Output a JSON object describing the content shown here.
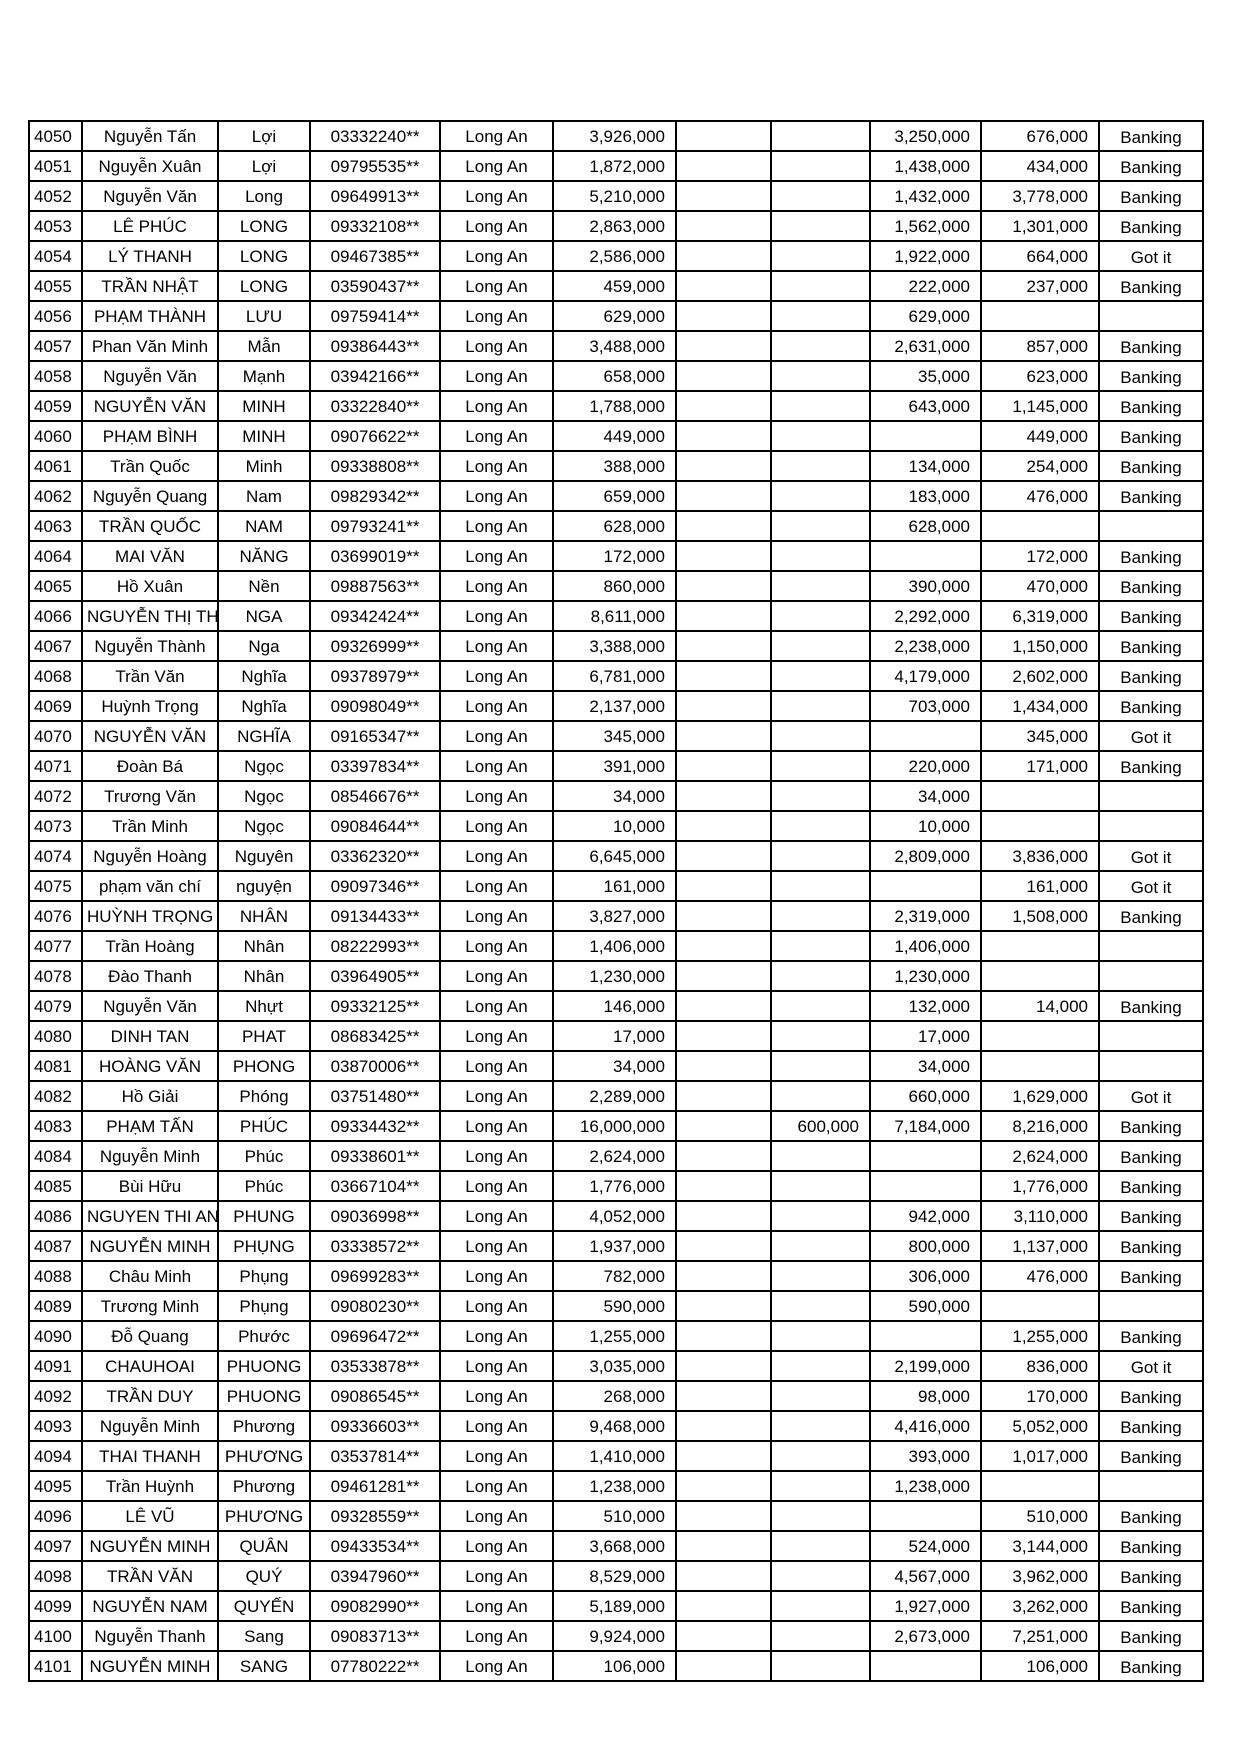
{
  "table": {
    "rows": [
      [
        "4050",
        "Nguyễn Tấn",
        "Lợi",
        "03332240**",
        "Long An",
        "3,926,000",
        "",
        "",
        "3,250,000",
        "676,000",
        "Banking"
      ],
      [
        "4051",
        "Nguyễn Xuân",
        "Lợi",
        "09795535**",
        "Long An",
        "1,872,000",
        "",
        "",
        "1,438,000",
        "434,000",
        "Banking"
      ],
      [
        "4052",
        "Nguyễn Văn",
        "Long",
        "09649913**",
        "Long An",
        "5,210,000",
        "",
        "",
        "1,432,000",
        "3,778,000",
        "Banking"
      ],
      [
        "4053",
        "LÊ PHÚC",
        "LONG",
        "09332108**",
        "Long An",
        "2,863,000",
        "",
        "",
        "1,562,000",
        "1,301,000",
        "Banking"
      ],
      [
        "4054",
        "LÝ THANH",
        "LONG",
        "09467385**",
        "Long An",
        "2,586,000",
        "",
        "",
        "1,922,000",
        "664,000",
        "Got it"
      ],
      [
        "4055",
        "TRẦN NHẬT",
        "LONG",
        "03590437**",
        "Long An",
        "459,000",
        "",
        "",
        "222,000",
        "237,000",
        "Banking"
      ],
      [
        "4056",
        "PHẠM THÀNH",
        "LƯU",
        "09759414**",
        "Long An",
        "629,000",
        "",
        "",
        "629,000",
        "",
        ""
      ],
      [
        "4057",
        "Phan Văn Minh",
        "Mẫn",
        "09386443**",
        "Long An",
        "3,488,000",
        "",
        "",
        "2,631,000",
        "857,000",
        "Banking"
      ],
      [
        "4058",
        "Nguyễn Văn",
        "Mạnh",
        "03942166**",
        "Long An",
        "658,000",
        "",
        "",
        "35,000",
        "623,000",
        "Banking"
      ],
      [
        "4059",
        "NGUYỄN VĂN",
        "MINH",
        "03322840**",
        "Long An",
        "1,788,000",
        "",
        "",
        "643,000",
        "1,145,000",
        "Banking"
      ],
      [
        "4060",
        "PHẠM BÌNH",
        "MINH",
        "09076622**",
        "Long An",
        "449,000",
        "",
        "",
        "",
        "449,000",
        "Banking"
      ],
      [
        "4061",
        "Trần Quốc",
        "Minh",
        "09338808**",
        "Long An",
        "388,000",
        "",
        "",
        "134,000",
        "254,000",
        "Banking"
      ],
      [
        "4062",
        "Nguyễn Quang",
        "Nam",
        "09829342**",
        "Long An",
        "659,000",
        "",
        "",
        "183,000",
        "476,000",
        "Banking"
      ],
      [
        "4063",
        "TRẦN QUỐC",
        "NAM",
        "09793241**",
        "Long An",
        "628,000",
        "",
        "",
        "628,000",
        "",
        ""
      ],
      [
        "4064",
        "MAI VĂN",
        "NĂNG",
        "03699019**",
        "Long An",
        "172,000",
        "",
        "",
        "",
        "172,000",
        "Banking"
      ],
      [
        "4065",
        "Hồ Xuân",
        "Nền",
        "09887563**",
        "Long An",
        "860,000",
        "",
        "",
        "390,000",
        "470,000",
        "Banking"
      ],
      [
        "4066",
        "NGUYỄN THỊ THANH",
        "NGA",
        "09342424**",
        "Long An",
        "8,611,000",
        "",
        "",
        "2,292,000",
        "6,319,000",
        "Banking"
      ],
      [
        "4067",
        "Nguyễn Thành",
        "Nga",
        "09326999**",
        "Long An",
        "3,388,000",
        "",
        "",
        "2,238,000",
        "1,150,000",
        "Banking"
      ],
      [
        "4068",
        "Trần Văn",
        "Nghĩa",
        "09378979**",
        "Long An",
        "6,781,000",
        "",
        "",
        "4,179,000",
        "2,602,000",
        "Banking"
      ],
      [
        "4069",
        "Huỳnh Trọng",
        "Nghĩa",
        "09098049**",
        "Long An",
        "2,137,000",
        "",
        "",
        "703,000",
        "1,434,000",
        "Banking"
      ],
      [
        "4070",
        "NGUYỄN VĂN",
        "NGHĨA",
        "09165347**",
        "Long An",
        "345,000",
        "",
        "",
        "",
        "345,000",
        "Got it"
      ],
      [
        "4071",
        "Đoàn Bá",
        "Ngọc",
        "03397834**",
        "Long An",
        "391,000",
        "",
        "",
        "220,000",
        "171,000",
        "Banking"
      ],
      [
        "4072",
        "Trương Văn",
        "Ngọc",
        "08546676**",
        "Long An",
        "34,000",
        "",
        "",
        "34,000",
        "",
        ""
      ],
      [
        "4073",
        "Trần Minh",
        "Ngọc",
        "09084644**",
        "Long An",
        "10,000",
        "",
        "",
        "10,000",
        "",
        ""
      ],
      [
        "4074",
        "Nguyễn Hoàng",
        "Nguyên",
        "03362320**",
        "Long An",
        "6,645,000",
        "",
        "",
        "2,809,000",
        "3,836,000",
        "Got it"
      ],
      [
        "4075",
        "phạm văn chí",
        "nguyện",
        "09097346**",
        "Long An",
        "161,000",
        "",
        "",
        "",
        "161,000",
        "Got it"
      ],
      [
        "4076",
        "HUỲNH TRỌNG",
        "NHÂN",
        "09134433**",
        "Long An",
        "3,827,000",
        "",
        "",
        "2,319,000",
        "1,508,000",
        "Banking"
      ],
      [
        "4077",
        "Trần Hoàng",
        "Nhân",
        "08222993**",
        "Long An",
        "1,406,000",
        "",
        "",
        "1,406,000",
        "",
        ""
      ],
      [
        "4078",
        "Đào Thanh",
        "Nhân",
        "03964905**",
        "Long An",
        "1,230,000",
        "",
        "",
        "1,230,000",
        "",
        ""
      ],
      [
        "4079",
        "Nguyễn Văn",
        "Nhựt",
        "09332125**",
        "Long An",
        "146,000",
        "",
        "",
        "132,000",
        "14,000",
        "Banking"
      ],
      [
        "4080",
        "DINH TAN",
        "PHAT",
        "08683425**",
        "Long An",
        "17,000",
        "",
        "",
        "17,000",
        "",
        ""
      ],
      [
        "4081",
        "HOÀNG VĂN",
        "PHONG",
        "03870006**",
        "Long An",
        "34,000",
        "",
        "",
        "34,000",
        "",
        ""
      ],
      [
        "4082",
        "Hồ Giải",
        "Phóng",
        "03751480**",
        "Long An",
        "2,289,000",
        "",
        "",
        "660,000",
        "1,629,000",
        "Got it"
      ],
      [
        "4083",
        "PHẠM TẤN",
        "PHÚC",
        "09334432**",
        "Long An",
        "16,000,000",
        "",
        "600,000",
        "7,184,000",
        "8,216,000",
        "Banking"
      ],
      [
        "4084",
        "Nguyễn Minh",
        "Phúc",
        "09338601**",
        "Long An",
        "2,624,000",
        "",
        "",
        "",
        "2,624,000",
        "Banking"
      ],
      [
        "4085",
        "Bùi Hữu",
        "Phúc",
        "03667104**",
        "Long An",
        "1,776,000",
        "",
        "",
        "",
        "1,776,000",
        "Banking"
      ],
      [
        "4086",
        "NGUYEN THI ANH",
        "PHUNG",
        "09036998**",
        "Long An",
        "4,052,000",
        "",
        "",
        "942,000",
        "3,110,000",
        "Banking"
      ],
      [
        "4087",
        "NGUYỄN MINH",
        "PHỤNG",
        "03338572**",
        "Long An",
        "1,937,000",
        "",
        "",
        "800,000",
        "1,137,000",
        "Banking"
      ],
      [
        "4088",
        "Châu Minh",
        "Phụng",
        "09699283**",
        "Long An",
        "782,000",
        "",
        "",
        "306,000",
        "476,000",
        "Banking"
      ],
      [
        "4089",
        "Trương Minh",
        "Phụng",
        "09080230**",
        "Long An",
        "590,000",
        "",
        "",
        "590,000",
        "",
        ""
      ],
      [
        "4090",
        "Đỗ Quang",
        "Phước",
        "09696472**",
        "Long An",
        "1,255,000",
        "",
        "",
        "",
        "1,255,000",
        "Banking"
      ],
      [
        "4091",
        "CHAUHOAI",
        "PHUONG",
        "03533878**",
        "Long An",
        "3,035,000",
        "",
        "",
        "2,199,000",
        "836,000",
        "Got it"
      ],
      [
        "4092",
        "TRẦN DUY",
        "PHUONG",
        "09086545**",
        "Long An",
        "268,000",
        "",
        "",
        "98,000",
        "170,000",
        "Banking"
      ],
      [
        "4093",
        "Nguyễn Minh",
        "Phương",
        "09336603**",
        "Long An",
        "9,468,000",
        "",
        "",
        "4,416,000",
        "5,052,000",
        "Banking"
      ],
      [
        "4094",
        "THAI THANH",
        "PHƯƠNG",
        "03537814**",
        "Long An",
        "1,410,000",
        "",
        "",
        "393,000",
        "1,017,000",
        "Banking"
      ],
      [
        "4095",
        "Trần Huỳnh",
        "Phương",
        "09461281**",
        "Long An",
        "1,238,000",
        "",
        "",
        "1,238,000",
        "",
        ""
      ],
      [
        "4096",
        "LÊ VŨ",
        "PHƯƠNG",
        "09328559**",
        "Long An",
        "510,000",
        "",
        "",
        "",
        "510,000",
        "Banking"
      ],
      [
        "4097",
        "NGUYỄN MINH",
        "QUÂN",
        "09433534**",
        "Long An",
        "3,668,000",
        "",
        "",
        "524,000",
        "3,144,000",
        "Banking"
      ],
      [
        "4098",
        "TRẦN VĂN",
        "QUÝ",
        "03947960**",
        "Long An",
        "8,529,000",
        "",
        "",
        "4,567,000",
        "3,962,000",
        "Banking"
      ],
      [
        "4099",
        "NGUYỄN NAM",
        "QUYẾN",
        "09082990**",
        "Long An",
        "5,189,000",
        "",
        "",
        "1,927,000",
        "3,262,000",
        "Banking"
      ],
      [
        "4100",
        "Nguyễn Thanh",
        "Sang",
        "09083713**",
        "Long An",
        "9,924,000",
        "",
        "",
        "2,673,000",
        "7,251,000",
        "Banking"
      ],
      [
        "4101",
        "NGUYỄN MINH",
        "SANG",
        "07780222**",
        "Long An",
        "106,000",
        "",
        "",
        "",
        "106,000",
        "Banking"
      ]
    ]
  }
}
